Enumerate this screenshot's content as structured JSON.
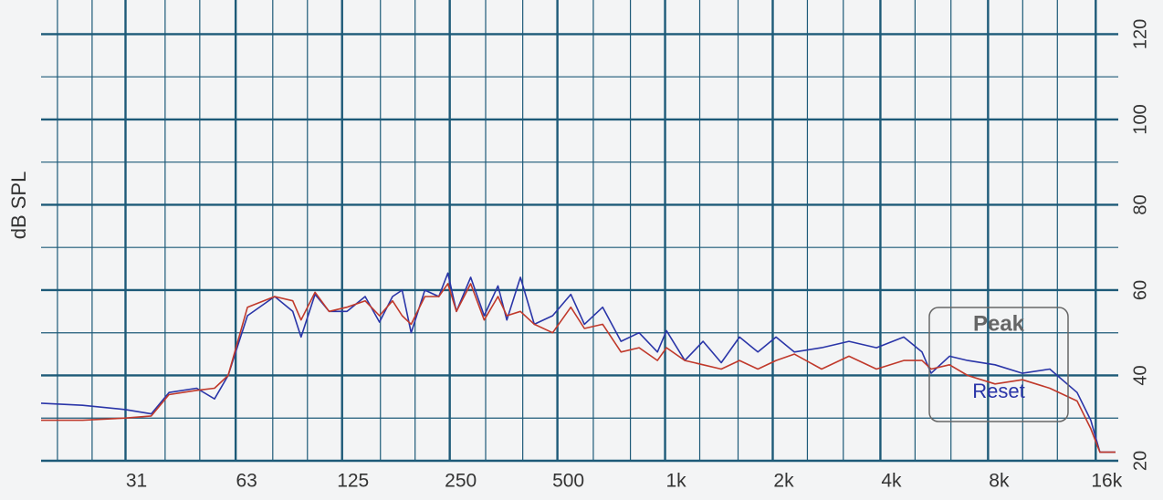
{
  "chart_data": {
    "type": "line",
    "ylabel": "dB SPL",
    "log_x": true,
    "grid": true,
    "xlim": [
      18,
      18500
    ],
    "ylim": [
      20,
      128
    ],
    "xticks": [
      31,
      63,
      125,
      250,
      500,
      {
        "value": 1000,
        "label": "1k"
      },
      {
        "value": 2000,
        "label": "2k"
      },
      {
        "value": 4000,
        "label": "4k"
      },
      {
        "value": 8000,
        "label": "8k"
      },
      {
        "value": 16000,
        "label": "16k"
      }
    ],
    "xticks_minor": [
      20,
      25,
      40,
      50,
      80,
      100,
      160,
      200,
      315,
      400,
      630,
      800,
      1250,
      1600,
      2500,
      3150,
      5000,
      6300,
      10000,
      12500
    ],
    "yticks": [
      20,
      40,
      60,
      80,
      100,
      120
    ],
    "yticks_minor": [
      30,
      50,
      70,
      90,
      110
    ],
    "x": [
      18,
      23.5,
      31,
      36.6,
      41,
      49,
      55,
      60,
      68,
      81,
      91,
      96,
      105,
      115,
      129,
      145,
      159,
      173,
      184,
      195,
      213,
      233,
      247,
      261,
      286,
      312,
      341,
      361,
      394,
      431,
      485,
      545,
      595,
      669,
      753,
      846,
      952,
      1009,
      1136,
      1277,
      1436,
      1615,
      1817,
      2043,
      2298,
      2740,
      3268,
      3900,
      4650,
      5230,
      5546,
      6240,
      7015,
      8367,
      9982,
      11904,
      14195,
      15503,
      16442,
      18172
    ],
    "series": [
      {
        "name": "Peak",
        "color": "#2a35a8",
        "values": [
          33.5,
          33,
          32,
          31,
          36,
          37,
          34.5,
          40,
          54,
          58.5,
          55,
          49,
          59,
          55,
          55,
          58.5,
          52.5,
          58.5,
          60,
          50,
          60,
          58.5,
          64,
          55,
          63,
          54,
          61,
          53,
          63,
          52,
          54,
          59,
          52,
          56,
          48,
          50,
          45.5,
          50.5,
          43.5,
          48,
          43,
          49,
          45.5,
          49,
          45.5,
          46.5,
          48,
          46.5,
          49,
          45.5,
          40.5,
          44.5,
          43.5,
          42.5,
          40.5,
          41.5,
          36,
          29.5,
          22,
          22
        ]
      },
      {
        "name": "Reset",
        "color": "#c0392b",
        "values": [
          29.5,
          29.5,
          30,
          30.5,
          35.5,
          36.5,
          37,
          40,
          56,
          58.5,
          57.5,
          53,
          59.5,
          55,
          56,
          57.5,
          54,
          57.5,
          54,
          52,
          58.5,
          58.5,
          61.5,
          55,
          61.5,
          53,
          58.5,
          54,
          55,
          52,
          50,
          56,
          51,
          52,
          45.5,
          46.5,
          43.5,
          46.5,
          43.5,
          42.5,
          41.5,
          43.5,
          41.5,
          43.5,
          45,
          41.5,
          44.5,
          41.5,
          43.5,
          43.5,
          41.5,
          42.5,
          40,
          38,
          39,
          37,
          34,
          27.5,
          22,
          22
        ]
      }
    ]
  },
  "controls": {
    "peak": "Peak",
    "reset": "Reset"
  }
}
